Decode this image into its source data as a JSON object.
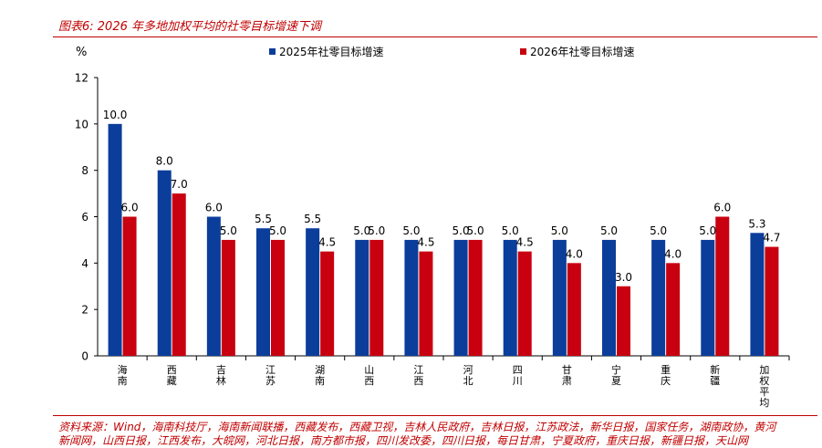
{
  "header": {
    "figure_title": "图表6: 2026 年多地加权平均的社零目标增速下调"
  },
  "footer": {
    "source": "资料来源：Wind，海南科技厅，海南新闻联播，西藏发布，西藏卫视，吉林人民政府，吉林日报，江苏政法，新华日报，国家任务，湖南政协，黄河",
    "source_cont": "新闻网，山西日报，江西发布，大皖网，河北日报，南方都市报，四川发改委，四川日报，每日甘肃，宁夏政府，重庆日报，新疆日报，天山网"
  },
  "colors": {
    "series2025": "#0b3d9b",
    "series2026": "#c8000f",
    "accent": "#c00000"
  },
  "chart_data": {
    "type": "bar",
    "ylabel": "%",
    "ylim": [
      0,
      12
    ],
    "yticks": [
      0,
      2,
      4,
      6,
      8,
      10,
      12
    ],
    "legend_position": "top",
    "grid": false,
    "categories": [
      "海南",
      "西藏",
      "吉林",
      "江苏",
      "湖南",
      "山西",
      "江西",
      "河北",
      "四川",
      "甘肃",
      "宁夏",
      "重庆",
      "新疆",
      "加权平均"
    ],
    "series": [
      {
        "name": "2025年社零目标增速",
        "color": "#0b3d9b",
        "values": [
          10.0,
          8.0,
          6.0,
          5.5,
          5.5,
          5.0,
          5.0,
          5.0,
          5.0,
          5.0,
          5.0,
          5.0,
          5.0,
          5.3
        ]
      },
      {
        "name": "2026年社零目标增速",
        "color": "#c8000f",
        "values": [
          6.0,
          7.0,
          5.0,
          5.0,
          4.5,
          5.0,
          4.5,
          5.0,
          4.5,
          4.0,
          3.0,
          4.0,
          6.0,
          4.7
        ]
      }
    ]
  }
}
